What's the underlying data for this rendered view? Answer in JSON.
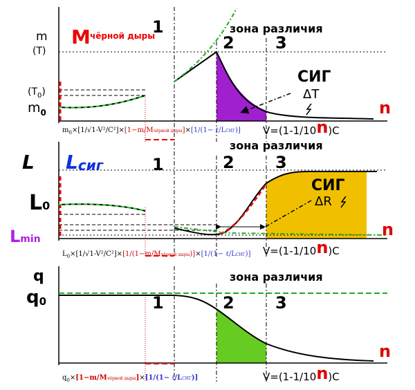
{
  "panel_mass": {
    "y_top": "m",
    "y_top_unit": "(T)",
    "y_mid": "(T",
    "y_mid_sub": "0",
    "y_mid_close": ")",
    "y_low": "m",
    "y_low_sub": "0",
    "bh_M": "M",
    "bh_words": "чёрной дыры",
    "zone1": "1",
    "zone_label": "зона различия",
    "zone2": "2",
    "zone3": "3",
    "sig": "СИГ",
    "delta": "ΔT",
    "n_label": "n",
    "formula": [
      "m",
      "0",
      "×[1/√1-V²/C²]",
      "×",
      "[1−m/M",
      "чёрной дыры",
      "]",
      "×",
      "[1/(1− ℓ/L",
      "СИГ",
      ")]"
    ],
    "speed": [
      "V=(1-1/10",
      "n",
      ")C"
    ]
  },
  "panel_length": {
    "y_top": "L",
    "y_top_sig": "L",
    "y_top_sig_sub": "сиг",
    "y_mid": "L",
    "y_mid_sub": "0",
    "y_low": "L",
    "y_low_sub": "min",
    "zone1": "1",
    "zone_label": "зона различия",
    "zone2": "2",
    "zone3": "3",
    "sig": "СИГ",
    "delta": "ΔR",
    "n_label": "n",
    "formula": [
      "L",
      "0",
      "×[1/√1-V²/C²]",
      "×",
      "[1/(1−m/M",
      "чёрной дыры",
      ")]",
      "×",
      "[1/(1− ℓ/L",
      "СИГ",
      ")]"
    ],
    "speed": [
      "V=(1-1/10",
      "n",
      ")C"
    ]
  },
  "panel_charge": {
    "y_top": "q",
    "y_mid": "q",
    "y_mid_sub": "0",
    "zone1": "1",
    "zone_label": "зона различия",
    "zone2": "2",
    "zone3": "3",
    "n_label": "n",
    "formula": [
      "q",
      "0",
      "×",
      "[1−m/M",
      "чёрной дыры",
      "]",
      "×",
      "[1/(1− ℓ/L",
      "СИГ",
      ")]"
    ],
    "speed": [
      "V=(1-1/10",
      "n",
      ")C"
    ]
  }
}
